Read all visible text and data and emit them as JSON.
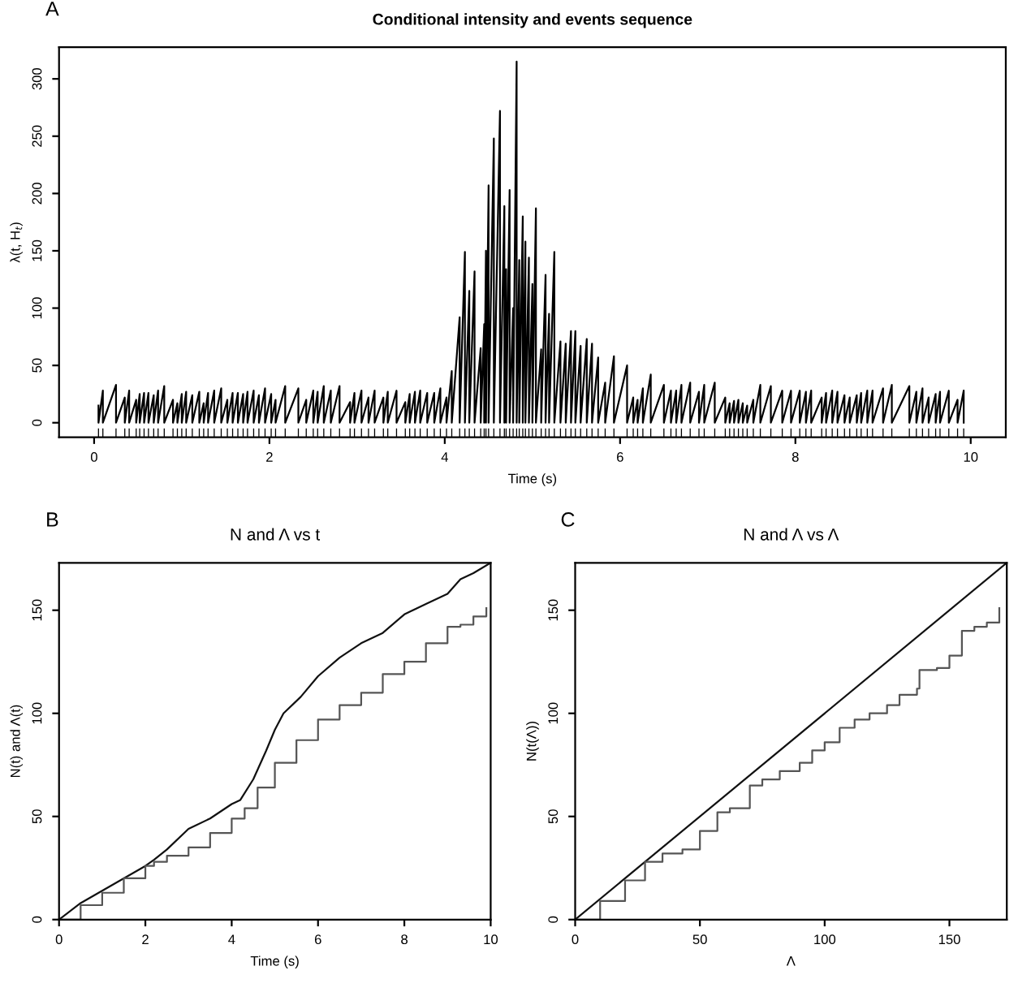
{
  "chart_data": [
    {
      "type": "line",
      "title": "Conditional intensity and events sequence",
      "xlabel": "Time (s)",
      "ylabel": "λ(t, H$_{t}$)",
      "annotations": [
        "A"
      ],
      "xlim": [
        -0.4,
        10.4
      ],
      "ylim": [
        -12.6,
        327.6
      ],
      "xticks": [
        0,
        2,
        4,
        6,
        8,
        10
      ],
      "yticks": [
        0,
        50,
        100,
        150,
        200,
        250,
        300
      ],
      "grid": false,
      "legend": false,
      "series": [
        {
          "color": "#000000",
          "x": [
            0.05,
            0.05,
            0.1,
            0.1,
            0.25,
            0.25,
            0.35,
            0.35,
            0.4,
            0.4,
            0.48,
            0.48,
            0.52,
            0.52,
            0.57,
            0.57,
            0.62,
            0.62,
            0.68,
            0.68,
            0.73,
            0.73,
            0.8,
            0.8,
            0.9,
            0.9,
            0.95,
            0.95,
            1.0,
            1.0,
            1.05,
            1.05,
            1.12,
            1.12,
            1.2,
            1.2,
            1.25,
            1.25,
            1.3,
            1.3,
            1.37,
            1.37,
            1.45,
            1.45,
            1.52,
            1.52,
            1.58,
            1.58,
            1.64,
            1.64,
            1.7,
            1.7,
            1.75,
            1.75,
            1.82,
            1.82,
            1.88,
            1.88,
            1.95,
            1.95,
            2.02,
            2.02,
            2.07,
            2.07,
            2.18,
            2.18,
            2.33,
            2.33,
            2.42,
            2.42,
            2.5,
            2.5,
            2.55,
            2.55,
            2.62,
            2.62,
            2.7,
            2.7,
            2.8,
            2.8,
            2.92,
            2.92,
            2.97,
            2.97,
            3.05,
            3.05,
            3.13,
            3.13,
            3.2,
            3.2,
            3.3,
            3.3,
            3.35,
            3.35,
            3.45,
            3.45,
            3.55,
            3.55,
            3.6,
            3.6,
            3.66,
            3.66,
            3.72,
            3.72,
            3.8,
            3.8,
            3.88,
            3.88,
            3.95,
            3.95,
            4.02,
            4.02,
            4.08,
            4.08,
            4.17,
            4.17,
            4.23,
            4.23,
            4.28,
            4.28,
            4.34,
            4.34,
            4.41,
            4.41,
            4.45,
            4.45,
            4.47,
            4.47,
            4.5,
            4.5,
            4.56,
            4.56,
            4.63,
            4.63,
            4.68,
            4.68,
            4.7,
            4.7,
            4.74,
            4.74,
            4.78,
            4.78,
            4.82,
            4.82,
            4.85,
            4.85,
            4.89,
            4.89,
            4.92,
            4.92,
            4.96,
            4.96,
            5.0,
            5.0,
            5.04,
            5.04,
            5.1,
            5.1,
            5.15,
            5.15,
            5.19,
            5.19,
            5.25,
            5.25,
            5.32,
            5.32,
            5.38,
            5.38,
            5.44,
            5.44,
            5.49,
            5.49,
            5.55,
            5.55,
            5.62,
            5.62,
            5.68,
            5.68,
            5.75,
            5.75,
            5.83,
            5.83,
            5.93,
            5.93,
            6.08,
            6.08,
            6.15,
            6.15,
            6.2,
            6.2,
            6.26,
            6.26,
            6.35,
            6.35,
            6.5,
            6.5,
            6.58,
            6.58,
            6.64,
            6.64,
            6.7,
            6.7,
            6.8,
            6.8,
            6.9,
            6.9,
            6.96,
            6.96,
            7.08,
            7.08,
            7.2,
            7.2,
            7.25,
            7.25,
            7.3,
            7.3,
            7.35,
            7.35,
            7.4,
            7.4,
            7.45,
            7.45,
            7.52,
            7.52,
            7.6,
            7.6,
            7.72,
            7.72,
            7.85,
            7.85,
            7.95,
            7.95,
            8.05,
            8.05,
            8.12,
            8.12,
            8.18,
            8.18,
            8.3,
            8.3,
            8.35,
            8.35,
            8.42,
            8.42,
            8.48,
            8.48,
            8.56,
            8.56,
            8.62,
            8.62,
            8.7,
            8.7,
            8.75,
            8.75,
            8.82,
            8.82,
            8.88,
            8.88,
            9.0,
            9.0,
            9.1,
            9.1,
            9.3,
            9.3,
            9.38,
            9.38,
            9.45,
            9.45,
            9.52,
            9.52,
            9.6,
            9.6,
            9.65,
            9.65,
            9.75,
            9.75,
            9.85,
            9.85,
            9.92,
            9.92
          ],
          "values": [
            15,
            0,
            28,
            0,
            33,
            0,
            22,
            0,
            28,
            0,
            20,
            0,
            25,
            0,
            26,
            0,
            26,
            0,
            24,
            0,
            28,
            0,
            32,
            0,
            20,
            0,
            17,
            0,
            25,
            0,
            27,
            0,
            24,
            0,
            27,
            0,
            17,
            0,
            26,
            0,
            28,
            0,
            30,
            0,
            20,
            0,
            26,
            0,
            26,
            0,
            25,
            0,
            27,
            0,
            28,
            0,
            24,
            0,
            30,
            0,
            25,
            0,
            20,
            0,
            32,
            0,
            30,
            0,
            20,
            0,
            28,
            0,
            27,
            0,
            32,
            0,
            28,
            0,
            32,
            0,
            18,
            0,
            26,
            0,
            28,
            0,
            22,
            0,
            28,
            0,
            22,
            0,
            27,
            0,
            28,
            0,
            18,
            0,
            25,
            0,
            27,
            0,
            28,
            0,
            26,
            0,
            26,
            0,
            30,
            0,
            22,
            0,
            45,
            0,
            92,
            0,
            149,
            0,
            115,
            0,
            132,
            0,
            65,
            0,
            86,
            0,
            150,
            0,
            207,
            0,
            248,
            0,
            272,
            0,
            189,
            0,
            134,
            0,
            203,
            0,
            100,
            0,
            315,
            0,
            142,
            0,
            180,
            0,
            158,
            0,
            144,
            0,
            121,
            0,
            187,
            0,
            64,
            0,
            129,
            0,
            95,
            0,
            149,
            0,
            71,
            0,
            69,
            0,
            80,
            0,
            80,
            0,
            67,
            0,
            73,
            0,
            69,
            0,
            57,
            0,
            35,
            0,
            58,
            0,
            50,
            0,
            22,
            0,
            20,
            0,
            30,
            0,
            42,
            0,
            33,
            0,
            28,
            0,
            28,
            0,
            33,
            0,
            35,
            0,
            27,
            0,
            33,
            0,
            35,
            0,
            22,
            0,
            17,
            0,
            19,
            0,
            20,
            0,
            17,
            0,
            15,
            0,
            20,
            0,
            33,
            0,
            32,
            0,
            28,
            0,
            28,
            0,
            28,
            0,
            27,
            0,
            28,
            0,
            22,
            0,
            26,
            0,
            28,
            0,
            27,
            0,
            24,
            0,
            22,
            0,
            24,
            0,
            26,
            0,
            28,
            0,
            28,
            0,
            30,
            0,
            33,
            0,
            32,
            0,
            27,
            0,
            30,
            0,
            22,
            0,
            25,
            0,
            27,
            0,
            28,
            0,
            20,
            0,
            28,
            0
          ]
        },
        {
          "type": "bar",
          "color": "#000000",
          "x": [
            0.05,
            0.1,
            0.25,
            0.35,
            0.4,
            0.48,
            0.52,
            0.57,
            0.62,
            0.68,
            0.73,
            0.8,
            0.9,
            0.95,
            1.0,
            1.05,
            1.12,
            1.2,
            1.25,
            1.3,
            1.37,
            1.45,
            1.52,
            1.58,
            1.64,
            1.7,
            1.75,
            1.82,
            1.88,
            1.95,
            2.02,
            2.07,
            2.18,
            2.33,
            2.42,
            2.5,
            2.55,
            2.62,
            2.7,
            2.8,
            2.92,
            2.97,
            3.05,
            3.13,
            3.2,
            3.3,
            3.35,
            3.45,
            3.55,
            3.6,
            3.66,
            3.72,
            3.8,
            3.88,
            3.95,
            4.02,
            4.08,
            4.17,
            4.23,
            4.28,
            4.34,
            4.41,
            4.45,
            4.47,
            4.5,
            4.56,
            4.63,
            4.68,
            4.7,
            4.74,
            4.78,
            4.82,
            4.85,
            4.89,
            4.92,
            4.96,
            5.0,
            5.04,
            5.1,
            5.15,
            5.19,
            5.25,
            5.32,
            5.38,
            5.44,
            5.49,
            5.55,
            5.62,
            5.68,
            5.75,
            5.83,
            5.93,
            6.08,
            6.15,
            6.2,
            6.26,
            6.35,
            6.5,
            6.58,
            6.64,
            6.7,
            6.8,
            6.9,
            6.96,
            7.08,
            7.2,
            7.25,
            7.3,
            7.35,
            7.4,
            7.45,
            7.52,
            7.6,
            7.72,
            7.85,
            7.95,
            8.05,
            8.12,
            8.18,
            8.3,
            8.35,
            8.42,
            8.48,
            8.56,
            8.62,
            8.7,
            8.75,
            8.82,
            8.88,
            9.0,
            9.1,
            9.3,
            9.38,
            9.45,
            9.52,
            9.6,
            9.65,
            9.75,
            9.85,
            9.92
          ],
          "base": [
            -12.6,
            -12.6,
            -12.6,
            -12.6,
            -12.6,
            -12.6,
            -12.6,
            -12.6,
            -12.6,
            -12.6,
            -12.6,
            -12.6,
            -12.6,
            -12.6,
            -12.6,
            -12.6,
            -12.6,
            -12.6,
            -12.6,
            -12.6,
            -12.6,
            -12.6,
            -12.6,
            -12.6,
            -12.6,
            -12.6,
            -12.6,
            -12.6,
            -12.6,
            -12.6,
            -12.6,
            -12.6,
            -12.6,
            -12.6,
            -12.6,
            -12.6,
            -12.6,
            -12.6,
            -12.6,
            -12.6,
            -12.6,
            -12.6,
            -12.6,
            -12.6,
            -12.6,
            -12.6,
            -12.6,
            -12.6,
            -12.6,
            -12.6,
            -12.6,
            -12.6,
            -12.6,
            -12.6,
            -12.6,
            -12.6,
            -12.6,
            -12.6,
            -12.6,
            -12.6,
            -12.6,
            -12.6,
            -12.6,
            -12.6,
            -12.6,
            -12.6,
            -12.6,
            -12.6,
            -12.6,
            -12.6,
            -12.6,
            -12.6,
            -12.6,
            -12.6,
            -12.6,
            -12.6,
            -12.6,
            -12.6,
            -12.6,
            -12.6,
            -12.6,
            -12.6,
            -12.6,
            -12.6,
            -12.6,
            -12.6,
            -12.6,
            -12.6,
            -12.6,
            -12.6,
            -12.6,
            -12.6,
            -12.6,
            -12.6,
            -12.6,
            -12.6,
            -12.6,
            -12.6,
            -12.6,
            -12.6,
            -12.6,
            -12.6,
            -12.6,
            -12.6,
            -12.6,
            -12.6,
            -12.6,
            -12.6,
            -12.6,
            -12.6,
            -12.6,
            -12.6,
            -12.6,
            -12.6,
            -12.6,
            -12.6,
            -12.6,
            -12.6,
            -12.6,
            -12.6,
            -12.6,
            -12.6,
            -12.6,
            -12.6,
            -12.6,
            -12.6,
            -12.6,
            -12.6,
            -12.6,
            -12.6,
            -12.6,
            -12.6,
            -12.6,
            -12.6,
            -12.6,
            -12.6,
            -12.6,
            -12.6,
            -12.6,
            -12.6
          ],
          "values": [
            7.6,
            7.6,
            7.6,
            7.6,
            7.6,
            7.6,
            7.6,
            7.6,
            7.6,
            7.6,
            7.6,
            7.6,
            7.6,
            7.6,
            7.6,
            7.6,
            7.6,
            7.6,
            7.6,
            7.6,
            7.6,
            7.6,
            7.6,
            7.6,
            7.6,
            7.6,
            7.6,
            7.6,
            7.6,
            7.6,
            7.6,
            7.6,
            7.6,
            7.6,
            7.6,
            7.6,
            7.6,
            7.6,
            7.6,
            7.6,
            7.6,
            7.6,
            7.6,
            7.6,
            7.6,
            7.6,
            7.6,
            7.6,
            7.6,
            7.6,
            7.6,
            7.6,
            7.6,
            7.6,
            7.6,
            7.6,
            7.6,
            7.6,
            7.6,
            7.6,
            7.6,
            7.6,
            7.6,
            7.6,
            7.6,
            7.6,
            7.6,
            7.6,
            7.6,
            7.6,
            7.6,
            7.6,
            7.6,
            7.6,
            7.6,
            7.6,
            7.6,
            7.6,
            7.6,
            7.6,
            7.6,
            7.6,
            7.6,
            7.6,
            7.6,
            7.6,
            7.6,
            7.6,
            7.6,
            7.6,
            7.6,
            7.6,
            7.6,
            7.6,
            7.6,
            7.6,
            7.6,
            7.6,
            7.6,
            7.6,
            7.6,
            7.6,
            7.6,
            7.6,
            7.6,
            7.6,
            7.6,
            7.6,
            7.6,
            7.6,
            7.6,
            7.6,
            7.6,
            7.6,
            7.6,
            7.6,
            7.6,
            7.6,
            7.6,
            7.6,
            7.6,
            7.6,
            7.6,
            7.6,
            7.6,
            7.6,
            7.6,
            7.6,
            7.6,
            7.6,
            7.6,
            7.6,
            7.6,
            7.6,
            7.6,
            7.6,
            7.6,
            7.6,
            7.6,
            7.6
          ]
        }
      ]
    },
    {
      "type": "line",
      "title": "N and Λ vs t",
      "xlabel": "Time (s)",
      "ylabel": "N(t) and Λ(t)",
      "annotations": [
        "B"
      ],
      "xlim": [
        0,
        10
      ],
      "ylim": [
        0,
        173
      ],
      "xticks": [
        0,
        2,
        4,
        6,
        8,
        10
      ],
      "yticks": [
        0,
        50,
        100,
        150
      ],
      "grid": false,
      "legend": false,
      "series": [
        {
          "color": "#111111",
          "x": [
            0,
            0.5,
            1,
            1.5,
            2,
            2.2,
            2.5,
            3,
            3.5,
            4,
            4.2,
            4.5,
            4.8,
            5,
            5.2,
            5.6,
            6,
            6.5,
            7,
            7.5,
            8,
            8.5,
            9,
            9.3,
            9.6,
            10
          ],
          "values": [
            0,
            8,
            14,
            20,
            26,
            29,
            34,
            44,
            49,
            56,
            58,
            68,
            82,
            92,
            100,
            108,
            118,
            127,
            134,
            139,
            148,
            153,
            158,
            165,
            168,
            173
          ]
        },
        {
          "type": "step",
          "color": "#555555",
          "x": [
            0,
            0.5,
            1,
            1.5,
            2,
            2.2,
            2.5,
            3,
            3.5,
            4,
            4.3,
            4.6,
            5,
            5.5,
            6,
            6.5,
            7,
            7.5,
            8,
            8.5,
            9,
            9.3,
            9.6,
            9.9
          ],
          "values": [
            0,
            7,
            13,
            20,
            26,
            28,
            31,
            35,
            42,
            49,
            54,
            64,
            76,
            87,
            97,
            104,
            110,
            119,
            125,
            134,
            142,
            143,
            147,
            151
          ]
        }
      ]
    },
    {
      "type": "line",
      "title": "N and Λ vs Λ",
      "xlabel": "Λ",
      "ylabel": "N(t(Λ))",
      "annotations": [
        "C"
      ],
      "xlim": [
        0,
        173
      ],
      "ylim": [
        0,
        173
      ],
      "xticks": [
        0,
        50,
        100,
        150
      ],
      "yticks": [
        0,
        50,
        100,
        150
      ],
      "grid": false,
      "legend": false,
      "series": [
        {
          "color": "#111111",
          "x": [
            0,
            173
          ],
          "values": [
            0,
            173
          ]
        },
        {
          "type": "step",
          "color": "#555555",
          "x": [
            0,
            10,
            20,
            28,
            30,
            35,
            43,
            50,
            57,
            62,
            70,
            75,
            82,
            90,
            95,
            100,
            106,
            112,
            118,
            125,
            130,
            137,
            138,
            145,
            150,
            155,
            160,
            165,
            170
          ],
          "values": [
            0,
            9,
            19,
            28,
            28,
            32,
            34,
            43,
            52,
            54,
            65,
            68,
            72,
            76,
            82,
            86,
            93,
            97,
            100,
            104,
            109,
            112,
            121,
            122,
            128,
            140,
            142,
            144,
            151
          ]
        }
      ]
    }
  ]
}
